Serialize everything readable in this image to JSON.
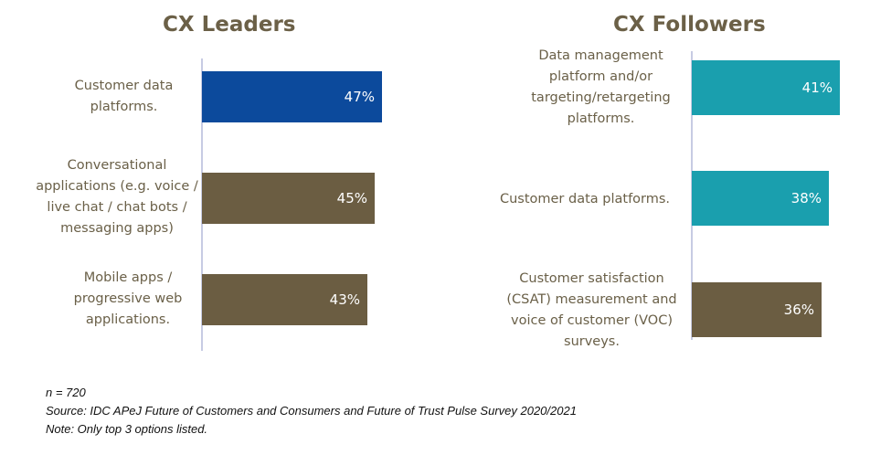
{
  "chart_data": [
    {
      "type": "bar",
      "orientation": "horizontal",
      "title": "CX Leaders",
      "categories": [
        "Customer data platforms.",
        "Conversational applications (e.g. voice / live chat / chat bots / messaging apps)",
        "Mobile apps / progressive web applications."
      ],
      "values": [
        47,
        45,
        43
      ],
      "value_labels": [
        "47%",
        "45%",
        "43%"
      ],
      "colors": [
        "#0c4a9c",
        "#6b5d42",
        "#6b5d42"
      ]
    },
    {
      "type": "bar",
      "orientation": "horizontal",
      "title": "CX Followers",
      "categories": [
        "Data management platform and/or targeting/retargeting platforms.",
        "Customer data platforms.",
        "Customer satisfaction (CSAT) measurement and voice of customer (VOC) surveys."
      ],
      "values": [
        41,
        38,
        36
      ],
      "value_labels": [
        "41%",
        "38%",
        "36%"
      ],
      "colors": [
        "#1a9fae",
        "#1a9fae",
        "#6b5d42"
      ]
    }
  ],
  "footnotes": {
    "n": "n = 720",
    "source": "Source: IDC APeJ Future of Customers and Consumers and Future of Trust Pulse Survey 2020/2021",
    "note": "Note: Only top 3 options listed."
  }
}
